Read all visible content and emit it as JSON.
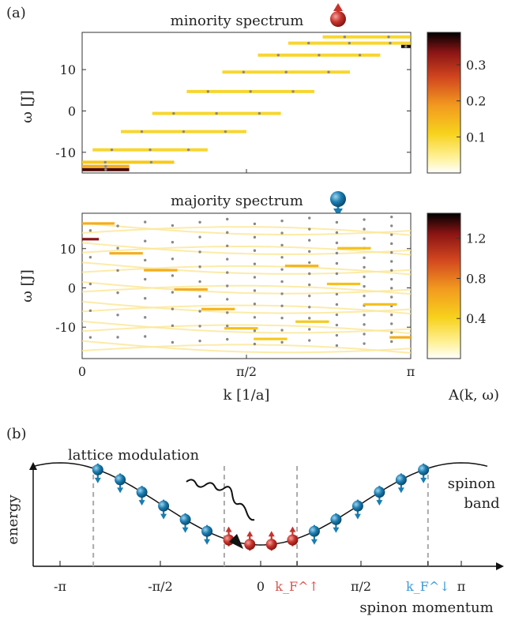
{
  "labels": {
    "panel_a": "(a)",
    "panel_b": "(b)",
    "minority_title": "minority spectrum",
    "majority_title": "majority spectrum",
    "omega_label": "ω [J]",
    "k_label": "k [1/a]",
    "colorbar_label": "A(k, ω)",
    "lattice_modulation": "lattice modulation",
    "energy_label": "energy",
    "spinon_band_line1": "spinon",
    "spinon_band_line2": "band",
    "spinon_momentum": "spinon momentum"
  },
  "colors": {
    "spin_up": "#c8322c",
    "spin_down": "#1a7db0",
    "kf_up": "#d9534f",
    "kf_down": "#3a9ad9",
    "colormap": [
      "#ffffff",
      "#fff3a0",
      "#f7d21d",
      "#f29a1f",
      "#d2461f",
      "#8a1414",
      "#000000"
    ]
  },
  "chart_data": [
    {
      "type": "heatmap",
      "title": "minority spectrum",
      "xlabel": "k [1/a]",
      "ylabel": "ω [J]",
      "xlim": [
        0,
        3.1416
      ],
      "ylim": [
        -15,
        19
      ],
      "xticks": [
        "0",
        "π/2",
        "π"
      ],
      "yticks": [
        {
          "v": -10,
          "t": "-10"
        },
        {
          "v": 0,
          "t": "0"
        },
        {
          "v": 10,
          "t": "10"
        }
      ],
      "colorbar": {
        "min": 0,
        "max": 0.39,
        "ticks": [
          {
            "v": 0.1,
            "t": "0.1"
          },
          {
            "v": 0.2,
            "t": "0.2"
          },
          {
            "v": 0.3,
            "t": "0.3"
          }
        ]
      },
      "levels": [
        {
          "w": -14.2,
          "k0": 0.0,
          "k1": 0.45,
          "a": 0.36
        },
        {
          "w": -13.4,
          "k0": 0.0,
          "k1": 0.45,
          "a": 0.16
        },
        {
          "w": -12.4,
          "k0": 0.0,
          "k1": 0.88,
          "a": 0.12
        },
        {
          "w": -9.4,
          "k0": 0.1,
          "k1": 1.2,
          "a": 0.1
        },
        {
          "w": -5.0,
          "k0": 0.37,
          "k1": 1.57,
          "a": 0.1
        },
        {
          "w": -0.6,
          "k0": 0.67,
          "k1": 1.9,
          "a": 0.1
        },
        {
          "w": 4.7,
          "k0": 1.0,
          "k1": 2.22,
          "a": 0.1
        },
        {
          "w": 9.4,
          "k0": 1.34,
          "k1": 2.56,
          "a": 0.1
        },
        {
          "w": 13.5,
          "k0": 1.68,
          "k1": 2.85,
          "a": 0.1
        },
        {
          "w": 16.4,
          "k0": 1.97,
          "k1": 3.14,
          "a": 0.1
        },
        {
          "w": 17.9,
          "k0": 2.3,
          "k1": 3.14,
          "a": 0.1
        },
        {
          "w": 15.6,
          "k0": 3.05,
          "k1": 3.14,
          "a": 0.38
        }
      ]
    },
    {
      "type": "heatmap",
      "title": "majority spectrum",
      "xlabel": "k [1/a]",
      "ylabel": "ω [J]",
      "xlim": [
        0,
        3.1416
      ],
      "ylim": [
        -18,
        19
      ],
      "xticks": [
        "0",
        "π/2",
        "π"
      ],
      "yticks": [
        {
          "v": -10,
          "t": "-10"
        },
        {
          "v": 0,
          "t": "0"
        },
        {
          "v": 10,
          "t": "10"
        }
      ],
      "colorbar": {
        "min": 0,
        "max": 1.45,
        "ticks": [
          {
            "v": 0.4,
            "t": "0.4"
          },
          {
            "v": 0.8,
            "t": "0.8"
          },
          {
            "v": 1.2,
            "t": "1.2"
          }
        ]
      },
      "levels": [
        {
          "w": 12.4,
          "k": 0.0,
          "a": 1.25
        },
        {
          "w": 8.8,
          "k": 0.42,
          "a": 0.6
        },
        {
          "w": 4.5,
          "k": 0.75,
          "a": 0.6
        },
        {
          "w": -0.4,
          "k": 1.04,
          "a": 0.6
        },
        {
          "w": -5.4,
          "k": 1.3,
          "a": 0.55
        },
        {
          "w": -10.3,
          "k": 1.52,
          "a": 0.5
        },
        {
          "w": -13.0,
          "k": 1.8,
          "a": 0.45
        },
        {
          "w": 5.6,
          "k": 2.1,
          "a": 0.55
        },
        {
          "w": 1.0,
          "k": 2.5,
          "a": 0.5
        },
        {
          "w": -4.2,
          "k": 2.85,
          "a": 0.5
        },
        {
          "w": 10.1,
          "k": 2.6,
          "a": 0.5
        },
        {
          "w": -8.6,
          "k": 2.2,
          "a": 0.45
        },
        {
          "w": 16.4,
          "k": 0.15,
          "a": 0.6
        },
        {
          "w": -12.6,
          "k": 3.1,
          "a": 0.6
        }
      ]
    },
    {
      "type": "line",
      "xlabel": "spinon momentum",
      "ylabel": "energy",
      "xlim": [
        -3.1416,
        3.1416
      ],
      "xticks": [
        "-π",
        "-π/2",
        "0",
        "k_F^↑",
        "π/2",
        "k_F^↓",
        "π"
      ],
      "series": [
        {
          "x": [
            -3.1416,
            3.1416
          ]
        }
      ],
      "dispersion": "1 - cos(k)",
      "spinons": {
        "down_k": [
          -2.55,
          -2.2,
          -1.86,
          -1.52,
          -1.18,
          -0.84,
          -0.5,
          0.5,
          0.84,
          1.18,
          1.52,
          1.86,
          2.2,
          2.55
        ],
        "up_k": [
          -0.5,
          -0.17,
          0.17,
          0.5
        ]
      },
      "kf_up": 0.57,
      "kf_down": 2.62
    }
  ]
}
